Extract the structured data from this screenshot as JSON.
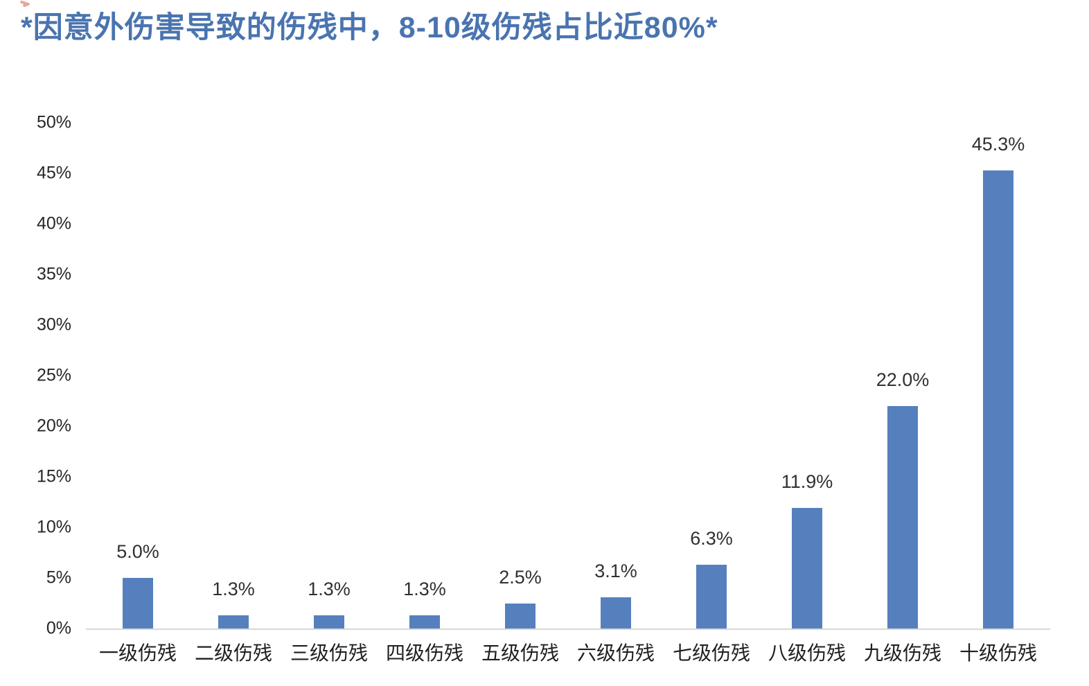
{
  "chart_data": {
    "type": "bar",
    "title": "*因意外伤害导致的伤残中，8-10级伤残占比近80%*",
    "categories": [
      "一级伤残",
      "二级伤残",
      "三级伤残",
      "四级伤残",
      "五级伤残",
      "六级伤残",
      "七级伤残",
      "八级伤残",
      "九级伤残",
      "十级伤残"
    ],
    "values": [
      5.0,
      1.3,
      1.3,
      1.3,
      2.5,
      3.1,
      6.3,
      11.9,
      22.0,
      45.3
    ],
    "data_labels": [
      "5.0%",
      "1.3%",
      "1.3%",
      "1.3%",
      "2.5%",
      "3.1%",
      "6.3%",
      "11.9%",
      "22.0%",
      "45.3%"
    ],
    "xlabel": "",
    "ylabel": "",
    "ylim": [
      0,
      50
    ],
    "ytick_step": 5,
    "ytick_labels": [
      "0%",
      "5%",
      "10%",
      "15%",
      "20%",
      "25%",
      "30%",
      "35%",
      "40%",
      "45%",
      "50%"
    ],
    "grid": false,
    "legend": false,
    "bar_color": "#5580BD",
    "title_color": "#4A74B0",
    "axis_line_color": "#D8D8D8",
    "label_color": "#303030"
  }
}
